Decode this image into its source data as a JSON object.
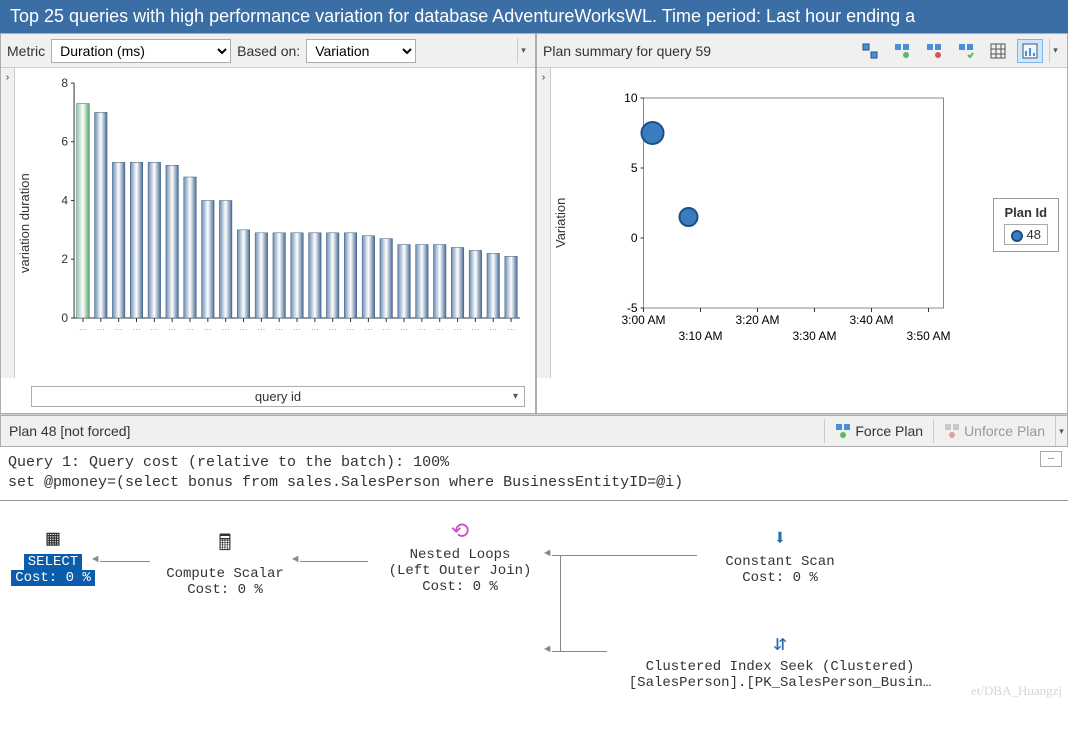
{
  "title": "Top 25 queries with high performance variation for database AdventureWorksWL. Time period: Last hour ending a",
  "left": {
    "metric_label": "Metric",
    "metric_value": "Duration (ms)",
    "basedon_label": "Based on:",
    "basedon_value": "Variation",
    "ylabel": "variation duration",
    "xlabel": "query id",
    "chart": {
      "type": "bar",
      "ylim": [
        0,
        8
      ],
      "ytick_step": 2,
      "bar_values": [
        7.3,
        7.0,
        5.3,
        5.3,
        5.3,
        5.2,
        4.8,
        4.0,
        4.0,
        3.0,
        2.9,
        2.9,
        2.9,
        2.9,
        2.9,
        2.9,
        2.8,
        2.7,
        2.5,
        2.5,
        2.5,
        2.4,
        2.3,
        2.2,
        2.1
      ],
      "highlight_index": 0,
      "bar_color": "#6c8db3",
      "bar_color_dark": "#4a6d95",
      "highlight_color": "#8fc9a0",
      "axis_color": "#333333",
      "background_color": "#ffffff"
    }
  },
  "right": {
    "title": "Plan summary for query 59",
    "ylabel": "Variation",
    "legend_title": "Plan Id",
    "legend_value": "48",
    "chart": {
      "type": "scatter",
      "ylim": [
        -5,
        10
      ],
      "yticks": [
        -5,
        0,
        5,
        10
      ],
      "xticks": [
        "3:00 AM",
        "3:10 AM",
        "3:20 AM",
        "3:30 AM",
        "3:40 AM",
        "3:50 AM"
      ],
      "points": [
        {
          "x": 0.03,
          "y": 7.5,
          "r": 11
        },
        {
          "x": 0.15,
          "y": 1.5,
          "r": 9
        }
      ],
      "point_color": "#3b7bbf",
      "point_border": "#1b4f8a",
      "border_color": "#888888",
      "background_color": "#ffffff"
    }
  },
  "plan_bar": {
    "title": "Plan 48 [not forced]",
    "force_label": "Force Plan",
    "unforce_label": "Unforce Plan"
  },
  "query": {
    "line1": "Query 1: Query cost (relative to the batch): 100%",
    "line2": "set @pmoney=(select bonus from sales.SalesPerson where BusinessEntityID=@i)"
  },
  "diagram": {
    "select": {
      "label": "SELECT",
      "cost": "Cost: 0 %"
    },
    "compute": {
      "label": "Compute Scalar",
      "cost": "Cost: 0 %"
    },
    "nested": {
      "label": "Nested Loops",
      "sub": "(Left Outer Join)",
      "cost": "Cost: 0 %"
    },
    "constant": {
      "label": "Constant Scan",
      "cost": "Cost: 0 %"
    },
    "seek": {
      "label": "Clustered Index Seek (Clustered)",
      "sub": "[SalesPerson].[PK_SalesPerson_Busin…"
    }
  },
  "watermark": "et/DBA_Huangzj"
}
